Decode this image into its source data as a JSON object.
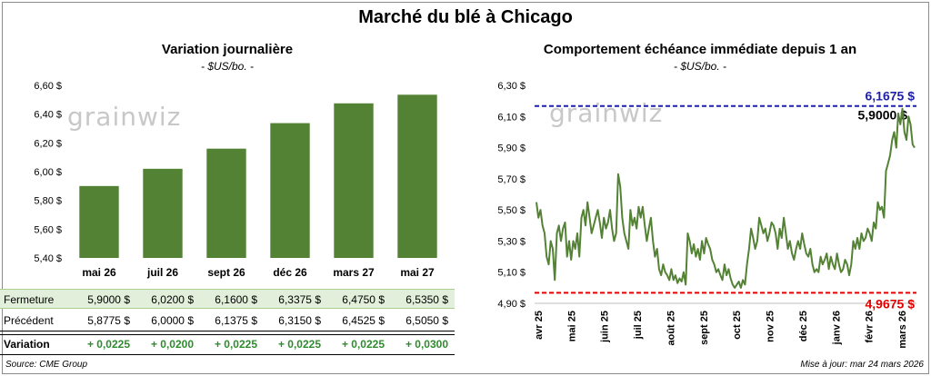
{
  "page": {
    "title": "Marché du blé à Chicago",
    "source": "Source: CME Group",
    "updated": "Mise à jour: mar 24 mars 2026",
    "logo": "grainwiz"
  },
  "colors": {
    "bar": "#548235",
    "line": "#548235",
    "high": "#1f1fa8",
    "low": "#e00000",
    "variation": "#2e8b2e"
  },
  "chart_data": [
    {
      "type": "bar",
      "title": "Variation journalière",
      "unit": "- $US/bo. -",
      "categories": [
        "mai 26",
        "juil 26",
        "sept 26",
        "déc 26",
        "mars 27",
        "mai 27"
      ],
      "values": [
        5.9,
        6.02,
        6.16,
        6.3375,
        6.475,
        6.535
      ],
      "ylim": [
        5.4,
        6.6
      ],
      "yticks": [
        "5,40 $",
        "5,60 $",
        "5,80 $",
        "6,00 $",
        "6,20 $",
        "6,40 $",
        "6,60 $"
      ],
      "ytick_values": [
        5.4,
        5.6,
        5.8,
        6.0,
        6.2,
        6.4,
        6.6
      ],
      "grid": false,
      "table": {
        "row_labels": [
          "Fermeture",
          "Précédent",
          "Variation"
        ],
        "fermeture": [
          "5,9000 $",
          "6,0200 $",
          "6,1600 $",
          "6,3375 $",
          "6,4750 $",
          "6,5350 $"
        ],
        "precedent": [
          "5,8775 $",
          "6,0000 $",
          "6,1375 $",
          "6,3150 $",
          "6,4525 $",
          "6,5050 $"
        ],
        "variation": [
          "+ 0,0225",
          "+ 0,0200",
          "+ 0,0225",
          "+ 0,0225",
          "+ 0,0225",
          "+ 0,0300"
        ]
      }
    },
    {
      "type": "line",
      "title": "Comportement échéance immédiate depuis 1 an",
      "unit": "- $US/bo. -",
      "ylim": [
        4.9,
        6.3
      ],
      "yticks": [
        "4,90 $",
        "5,10 $",
        "5,30 $",
        "5,50 $",
        "5,70 $",
        "5,90 $",
        "6,10 $",
        "6,30 $"
      ],
      "ytick_values": [
        4.9,
        5.1,
        5.3,
        5.5,
        5.7,
        5.9,
        6.1,
        6.3
      ],
      "xticks": [
        "avr 25",
        "mai 25",
        "juin 25",
        "juil 25",
        "août 25",
        "sept 25",
        "oct 25",
        "nov 25",
        "déc 25",
        "janv 26",
        "févr 26",
        "mars 26"
      ],
      "high": 6.1675,
      "high_label": "6,1675 $",
      "low": 4.9675,
      "low_label": "4,9675 $",
      "last_label": "5,9000 $",
      "values": [
        5.55,
        5.45,
        5.5,
        5.4,
        5.35,
        5.2,
        5.15,
        5.3,
        5.25,
        5.05,
        5.35,
        5.4,
        5.3,
        5.38,
        5.42,
        5.2,
        5.3,
        5.18,
        5.3,
        5.25,
        5.35,
        5.2,
        5.45,
        5.5,
        5.4,
        5.55,
        5.45,
        5.35,
        5.4,
        5.45,
        5.5,
        5.42,
        5.32,
        5.45,
        5.38,
        5.42,
        5.5,
        5.38,
        5.3,
        5.35,
        5.73,
        5.65,
        5.45,
        5.35,
        5.3,
        5.25,
        5.5,
        5.4,
        5.45,
        5.38,
        5.52,
        5.45,
        5.52,
        5.4,
        5.3,
        5.38,
        5.45,
        5.3,
        5.2,
        5.25,
        5.12,
        5.08,
        5.15,
        5.1,
        5.08,
        5.05,
        5.12,
        5.05,
        5.08,
        5.03,
        5.06,
        5.04,
        5.1,
        5.02,
        5.35,
        5.3,
        5.22,
        5.28,
        5.2,
        5.25,
        5.18,
        5.3,
        5.22,
        5.32,
        5.28,
        5.25,
        5.18,
        5.15,
        5.1,
        5.12,
        5.08,
        5.05,
        5.15,
        5.08,
        5.12,
        5.06,
        5.02,
        5.0,
        5.02,
        5.04,
        5.0,
        5.05,
        5.02,
        5.15,
        5.25,
        5.38,
        5.32,
        5.25,
        5.3,
        5.45,
        5.4,
        5.35,
        5.38,
        5.3,
        5.35,
        5.42,
        5.4,
        5.35,
        5.25,
        5.38,
        5.32,
        5.45,
        5.35,
        5.25,
        5.3,
        5.22,
        5.18,
        5.25,
        5.3,
        5.25,
        5.35,
        5.28,
        5.22,
        5.2,
        5.25,
        5.15,
        5.1,
        5.12,
        5.1,
        5.2,
        5.15,
        5.18,
        5.22,
        5.12,
        5.2,
        5.15,
        5.12,
        5.22,
        5.15,
        5.1,
        5.12,
        5.18,
        5.15,
        5.08,
        5.15,
        5.3,
        5.25,
        5.32,
        5.25,
        5.35,
        5.3,
        5.32,
        5.38,
        5.35,
        5.3,
        5.42,
        5.38,
        5.55,
        5.5,
        5.52,
        5.45,
        5.75,
        5.8,
        5.85,
        5.95,
        6.0,
        5.9,
        6.12,
        6.05,
        6.15,
        6.0,
        5.95,
        6.1,
        6.05,
        5.92,
        5.9
      ]
    }
  ]
}
